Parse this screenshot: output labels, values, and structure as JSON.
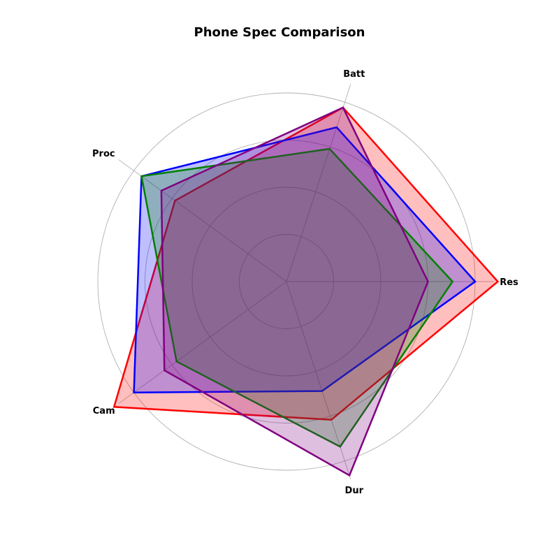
{
  "chart_data": {
    "type": "radar",
    "title": "Phone Spec Comparison",
    "axes": [
      "Res",
      "Batt",
      "Proc",
      "Cam",
      "Dur"
    ],
    "rmax": 10,
    "rticks": [
      2.5,
      5,
      7.5,
      10
    ],
    "grid": true,
    "series": [
      {
        "color": "#ff0000",
        "values": [
          11.2,
          9.7,
          7.3,
          11.3,
          7.7
        ]
      },
      {
        "color": "#0000ff",
        "values": [
          10.0,
          8.6,
          9.5,
          10.0,
          6.1
        ]
      },
      {
        "color": "#008000",
        "values": [
          8.8,
          7.4,
          9.5,
          7.2,
          9.2
        ]
      },
      {
        "color": "#800080",
        "values": [
          7.5,
          9.7,
          8.2,
          8.0,
          10.8
        ]
      }
    ]
  }
}
